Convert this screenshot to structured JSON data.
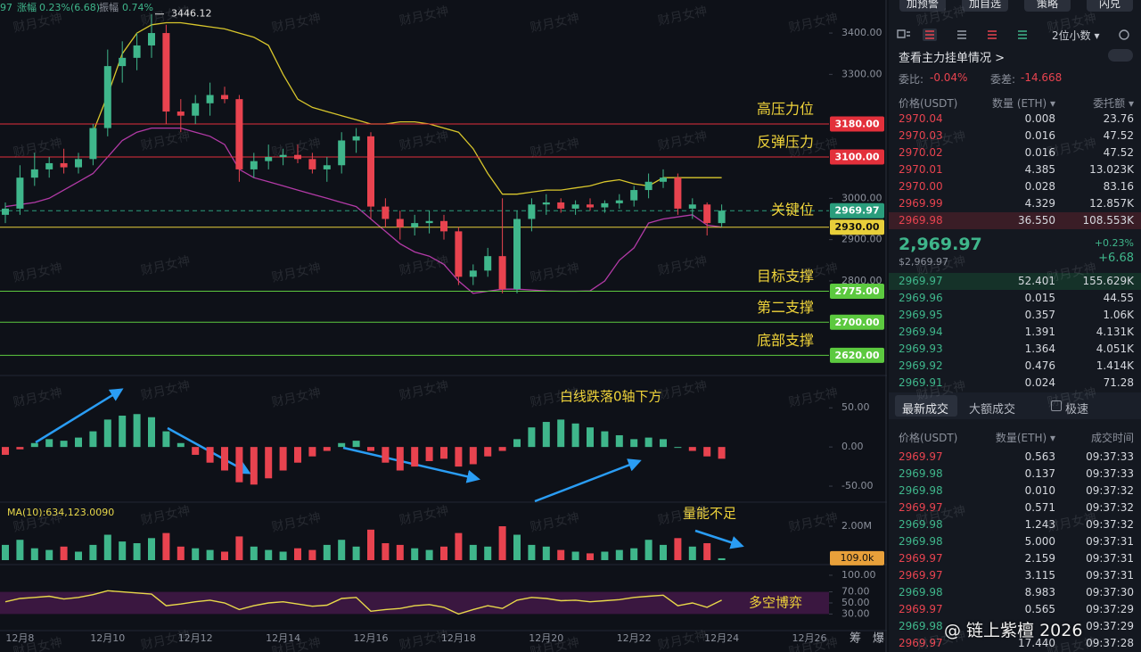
{
  "header": {
    "ticker_tail": "97",
    "change_label": "涨幅",
    "change": "0.23%(6.68)",
    "amplitude_label": "振幅",
    "amplitude": "0.74%"
  },
  "chart": {
    "type": "candlestick",
    "watermark": "财月女神",
    "high_marker": 3446.12,
    "up_color": "#3fb68b",
    "down_color": "#e8434f",
    "level_label_color": "#f0d43a",
    "ylim": [
      2584,
      3480
    ],
    "yticks": [
      {
        "value": 3400,
        "label": "3400.00"
      },
      {
        "value": 3300,
        "label": "3300.00"
      },
      {
        "value": 3000,
        "label": "3000.00"
      },
      {
        "value": 2900,
        "label": "2900.00"
      },
      {
        "value": 2800,
        "label": "2800.00"
      }
    ],
    "levels": [
      {
        "value": 3180,
        "label": "3180.00",
        "name": "高压力位",
        "color": "#e3303b",
        "text_color": "#ffffff",
        "dashed": false
      },
      {
        "value": 3100,
        "label": "3100.00",
        "name": "反弹压力",
        "color": "#e3303b",
        "text_color": "#ffffff",
        "dashed": false
      },
      {
        "value": 2969.97,
        "label": "2969.97",
        "name": "关键位",
        "color": "#2a9d7c",
        "text_color": "#ffffff",
        "dashed": true
      },
      {
        "value": 2930,
        "label": "2930.00",
        "color": "#e8cf3a",
        "text_color": "#111111",
        "dashed": false
      },
      {
        "value": 2775,
        "label": "2775.00",
        "name": "目标支撑",
        "color": "#5cc93f",
        "text_color": "#ffffff",
        "dashed": false
      },
      {
        "value": 2700,
        "label": "2700.00",
        "name": "第二支撑",
        "color": "#5cc93f",
        "text_color": "#ffffff",
        "dashed": false
      },
      {
        "value": 2620,
        "label": "2620.00",
        "name": "底部支撑",
        "color": "#5cc93f",
        "text_color": "#ffffff",
        "dashed": false
      }
    ],
    "categories": [
      null,
      "12月8",
      null,
      null,
      null,
      null,
      null,
      "12月10",
      null,
      null,
      null,
      null,
      null,
      "12月12",
      null,
      null,
      null,
      null,
      null,
      "12月14",
      null,
      null,
      null,
      null,
      null,
      "12月16",
      null,
      null,
      null,
      null,
      null,
      "12月18",
      null,
      null,
      null,
      null,
      null,
      "12月20",
      null,
      null,
      null,
      null,
      null,
      "12月22",
      null,
      null,
      null,
      null,
      null,
      "12月24",
      null,
      null,
      null,
      null,
      null,
      "12月26"
    ],
    "open": [
      2960,
      2975,
      3050,
      3070,
      3085,
      3075,
      3095,
      3170,
      3320,
      3340,
      3370,
      3400,
      3210,
      3200,
      3230,
      3250,
      3240,
      3070,
      3090,
      3100,
      3105,
      3095,
      3070,
      3080,
      3140,
      3150,
      2980,
      2950,
      2930,
      2940,
      2945,
      2920,
      2810,
      2825,
      2860,
      2780,
      2950,
      2985,
      2990,
      2975,
      2985,
      2978,
      2988,
      2995,
      3020,
      3040,
      3050,
      2975,
      2985,
      2940,
      null,
      null,
      null,
      null,
      null,
      null
    ],
    "high": [
      2990,
      3080,
      3110,
      3100,
      3120,
      3110,
      3180,
      3360,
      3380,
      3400,
      3446.12,
      3420,
      3240,
      3250,
      3280,
      3270,
      3250,
      3110,
      3130,
      3120,
      3130,
      3110,
      3100,
      3160,
      3170,
      3160,
      3000,
      2970,
      2960,
      2970,
      2960,
      2930,
      2840,
      2880,
      3000,
      2970,
      3000,
      3010,
      3000,
      2995,
      3000,
      2995,
      3010,
      3030,
      3060,
      3070,
      3060,
      3000,
      2990,
      2985,
      null,
      null,
      null,
      null,
      null,
      null
    ],
    "low": [
      2940,
      2960,
      3030,
      3050,
      3060,
      3060,
      3080,
      3150,
      3280,
      3310,
      3340,
      3180,
      3160,
      3180,
      3200,
      3230,
      3040,
      3050,
      3070,
      3080,
      3085,
      3060,
      3040,
      3060,
      3110,
      2950,
      2930,
      2900,
      2910,
      2915,
      2900,
      2790,
      2790,
      2810,
      2770,
      2770,
      2920,
      2960,
      2965,
      2960,
      2970,
      2965,
      2975,
      2980,
      3000,
      3025,
      2960,
      2950,
      2910,
      2930,
      null,
      null,
      null,
      null,
      null,
      null
    ],
    "close": [
      2975,
      3050,
      3070,
      3085,
      3075,
      3095,
      3170,
      3320,
      3340,
      3370,
      3400,
      3210,
      3200,
      3230,
      3250,
      3240,
      3070,
      3090,
      3100,
      3105,
      3095,
      3070,
      3080,
      3140,
      3150,
      2980,
      2950,
      2930,
      2940,
      2945,
      2920,
      2810,
      2825,
      2860,
      2780,
      2950,
      2985,
      2990,
      2975,
      2985,
      2978,
      2988,
      2995,
      3020,
      3040,
      3050,
      2975,
      2985,
      2940,
      2969.97,
      null,
      null,
      null,
      null,
      null,
      null
    ],
    "bb_upper": [
      null,
      null,
      null,
      null,
      null,
      null,
      3160,
      3250,
      3350,
      3400,
      3420,
      3425,
      3425,
      3420,
      3415,
      3410,
      3400,
      3390,
      3370,
      3300,
      3240,
      3220,
      3210,
      3200,
      3190,
      3180,
      3180,
      3185,
      3185,
      3180,
      3170,
      3160,
      3120,
      3060,
      3010,
      3010,
      3015,
      3020,
      3020,
      3025,
      3030,
      3040,
      3045,
      3035,
      3030,
      3050,
      3050,
      3050,
      3050,
      3050,
      null,
      null,
      null,
      null,
      null,
      null
    ],
    "bb_lower": [
      2980,
      2985,
      2990,
      3000,
      3020,
      3040,
      3060,
      3100,
      3140,
      3160,
      3170,
      3170,
      3170,
      3160,
      3150,
      3130,
      3070,
      3050,
      3040,
      3030,
      3020,
      3010,
      3000,
      2990,
      2980,
      2950,
      2920,
      2890,
      2870,
      2860,
      2840,
      2800,
      2770,
      2775,
      2780,
      2780,
      2778,
      2776,
      2775,
      2775,
      2776,
      2800,
      2850,
      2880,
      2940,
      2950,
      2955,
      2960,
      2935,
      2930,
      null,
      null,
      null,
      null,
      null,
      null
    ],
    "bb_upper_color": "#d8c62c",
    "bb_lower_color": "#b23aa6",
    "macd": {
      "note": "白线跌落0轴下方",
      "ylim": [
        -67,
        81
      ],
      "yticks": [
        {
          "value": 50,
          "label": "50.00"
        },
        {
          "value": 0,
          "label": "0.00"
        },
        {
          "value": -50,
          "label": "-50.00"
        }
      ],
      "values": [
        -10,
        -3,
        5,
        10,
        8,
        12,
        20,
        35,
        40,
        42,
        38,
        20,
        5,
        -10,
        -20,
        -30,
        -45,
        -48,
        -40,
        -30,
        -20,
        -12,
        -5,
        5,
        8,
        -5,
        -20,
        -30,
        -25,
        -18,
        -15,
        -25,
        -22,
        -12,
        -5,
        10,
        25,
        32,
        35,
        30,
        25,
        20,
        15,
        10,
        12,
        10,
        0,
        -5,
        -12,
        -15,
        null,
        null,
        null,
        null,
        null,
        null
      ]
    },
    "volume": {
      "ma_label": "MA(10):634,123.0090",
      "note": "量能不足",
      "ylim": [
        0,
        3160000
      ],
      "yticks": [
        {
          "value": 2000000,
          "label": "2.00M"
        }
      ],
      "current": {
        "value": 109000,
        "label": "109.0k"
      },
      "values": [
        900000,
        1200000,
        700000,
        600000,
        800000,
        500000,
        900000,
        1500000,
        1100000,
        1000000,
        1300000,
        1600000,
        800000,
        700000,
        600000,
        500000,
        1400000,
        800000,
        600000,
        500000,
        700000,
        600000,
        900000,
        1200000,
        800000,
        1800000,
        1000000,
        900000,
        700000,
        600000,
        800000,
        1600000,
        900000,
        800000,
        2000000,
        1500000,
        900000,
        800000,
        600000,
        500000,
        400000,
        500000,
        600000,
        700000,
        1200000,
        900000,
        1300000,
        800000,
        1000000,
        109000,
        null,
        null,
        null,
        null,
        null,
        null
      ]
    },
    "rsi": {
      "note": "多空博弈",
      "color": "#e8d84a",
      "ylim": [
        0,
        108
      ],
      "yticks": [
        {
          "value": 100,
          "label": "100.00"
        },
        {
          "value": 70,
          "label": "70.00"
        },
        {
          "value": 50,
          "label": "50.00"
        },
        {
          "value": 30,
          "label": "30.00"
        }
      ],
      "values": [
        52,
        58,
        60,
        62,
        57,
        60,
        65,
        72,
        70,
        68,
        66,
        45,
        48,
        52,
        55,
        50,
        38,
        45,
        50,
        52,
        48,
        44,
        46,
        58,
        60,
        35,
        38,
        40,
        45,
        47,
        42,
        30,
        38,
        45,
        40,
        55,
        60,
        58,
        54,
        55,
        52,
        54,
        56,
        60,
        62,
        64,
        45,
        50,
        42,
        55,
        null,
        null,
        null,
        null,
        null,
        null
      ]
    },
    "side_labels": [
      "筹",
      "爆"
    ]
  },
  "panel": {
    "buttons": [
      "加预警",
      "加自选",
      "策略",
      "闪兑"
    ],
    "decimals": "2位小数 ▾",
    "main_orders": "查看主力挂单情况 >",
    "ratio": "委比:",
    "ratio_value": "-0.04%",
    "diff": "委差:",
    "diff_value": "-14.668",
    "columns": [
      "价格(USDT)",
      "数量 (ETH) ▾",
      "委托额 ▾"
    ],
    "asks": [
      [
        "2970.04",
        "0.008",
        "23.76"
      ],
      [
        "2970.03",
        "0.016",
        "47.52"
      ],
      [
        "2970.02",
        "0.016",
        "47.52"
      ],
      [
        "2970.01",
        "4.385",
        "13.023K"
      ],
      [
        "2970.00",
        "0.028",
        "83.16"
      ],
      [
        "2969.99",
        "4.329",
        "12.857K"
      ],
      [
        "2969.98",
        "36.550",
        "108.553K"
      ]
    ],
    "mid": {
      "price": "2,969.97",
      "usd": "$2,969.97",
      "change_pct": "+0.23%",
      "change": "+6.68"
    },
    "bids": [
      [
        "2969.97",
        "52.401",
        "155.629K"
      ],
      [
        "2969.96",
        "0.015",
        "44.55"
      ],
      [
        "2969.95",
        "0.357",
        "1.06K"
      ],
      [
        "2969.94",
        "1.391",
        "4.131K"
      ],
      [
        "2969.93",
        "1.364",
        "4.051K"
      ],
      [
        "2969.92",
        "0.476",
        "1.414K"
      ],
      [
        "2969.91",
        "0.024",
        "71.28"
      ]
    ],
    "tabs": [
      "最新成交",
      "大额成交",
      "极速"
    ],
    "trade_columns": [
      "价格(USDT)",
      "数量(ETH) ▾",
      "成交时间"
    ],
    "trades": [
      {
        "price": "2969.97",
        "qty": "0.563",
        "time": "09:37:33",
        "color": "#e8434f"
      },
      {
        "price": "2969.98",
        "qty": "0.137",
        "time": "09:37:33",
        "color": "#3fb68b"
      },
      {
        "price": "2969.98",
        "qty": "0.010",
        "time": "09:37:32",
        "color": "#3fb68b"
      },
      {
        "price": "2969.97",
        "qty": "0.571",
        "time": "09:37:32",
        "color": "#e8434f"
      },
      {
        "price": "2969.98",
        "qty": "1.243",
        "time": "09:37:32",
        "color": "#3fb68b"
      },
      {
        "price": "2969.98",
        "qty": "5.000",
        "time": "09:37:31",
        "color": "#3fb68b"
      },
      {
        "price": "2969.97",
        "qty": "2.159",
        "time": "09:37:31",
        "color": "#e8434f"
      },
      {
        "price": "2969.97",
        "qty": "3.115",
        "time": "09:37:31",
        "color": "#e8434f"
      },
      {
        "price": "2969.98",
        "qty": "8.983",
        "time": "09:37:30",
        "color": "#3fb68b"
      },
      {
        "price": "2969.97",
        "qty": "0.565",
        "time": "09:37:29",
        "color": "#e8434f"
      },
      {
        "price": "2969.98",
        "time": "09:37:29",
        "color": "#3fb68b"
      },
      {
        "price": "2969.97",
        "qty": "17.440",
        "time": "09:37:28",
        "color": "#e8434f"
      }
    ],
    "credit": "@ 链上紫檀 2026"
  }
}
